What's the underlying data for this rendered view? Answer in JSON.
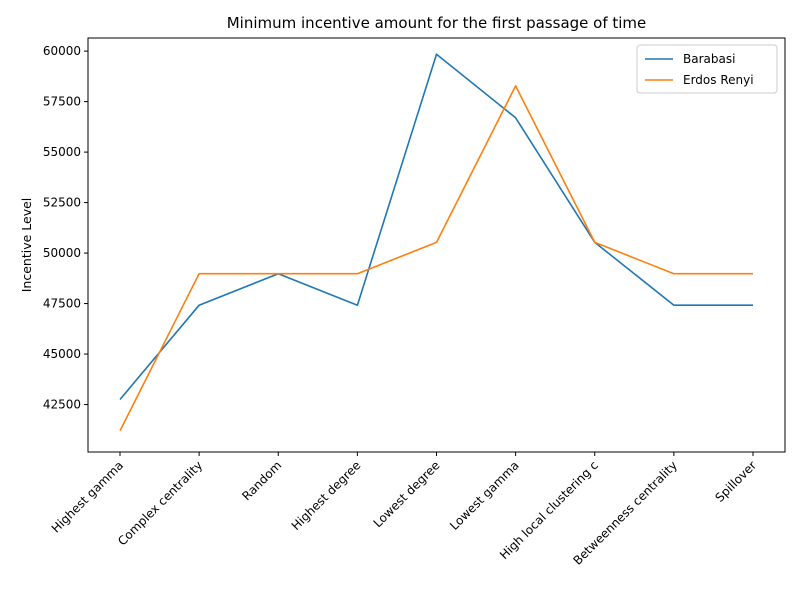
{
  "chart_data": {
    "type": "line",
    "title": "Minimum incentive amount for the first passage of time",
    "xlabel": "",
    "ylabel": "Incentive Level",
    "categories": [
      "Highest gamma",
      "Complex centrality",
      "Random",
      "Highest degree",
      "Lowest degree",
      "Lowest gamma",
      "High local clustering c",
      "Betweenness centrality",
      "Spillover"
    ],
    "series": [
      {
        "name": "Barabasi",
        "color": "#1f77b4",
        "values": [
          42750,
          47420,
          48980,
          47420,
          59850,
          56700,
          50530,
          47420,
          47420
        ]
      },
      {
        "name": "Erdos Renyi",
        "color": "#ff7f0e",
        "values": [
          41200,
          48980,
          48980,
          48980,
          50530,
          58280,
          50530,
          48980,
          48980
        ]
      }
    ],
    "ylim": [
      40150,
      60650
    ],
    "yticks": [
      42500,
      45000,
      47500,
      50000,
      52500,
      55000,
      57500,
      60000
    ],
    "ytick_labels": [
      "42500",
      "45000",
      "47500",
      "50000",
      "52500",
      "55000",
      "57500",
      "60000"
    ],
    "grid": false,
    "legend_position": "top-right"
  }
}
